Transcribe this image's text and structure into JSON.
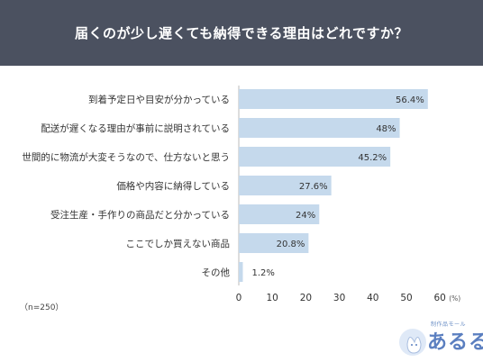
{
  "chart_data": {
    "type": "bar",
    "orientation": "horizontal",
    "title": "届くのが少し遅くても納得できる理由はどれですか？",
    "categories": [
      "到着予定日や目安が分かっている",
      "配送が遅くなる理由が事前に説明されている",
      "世間的に物流が大変そうなので、仕方ないと思う",
      "価格や内容に納得している",
      "受注生産・手作りの商品だと分かっている",
      "ここでしか買えない商品",
      "その他"
    ],
    "values": [
      56.4,
      48,
      45.2,
      27.6,
      24,
      20.8,
      1.2
    ],
    "value_labels": [
      "56.4%",
      "48%",
      "45.2%",
      "27.6%",
      "24%",
      "20.8%",
      "1.2%"
    ],
    "xlim": [
      0,
      60
    ],
    "xticks": [
      "0",
      "10",
      "20",
      "30",
      "40",
      "50",
      "60"
    ],
    "xunit": "(%)",
    "grid": false,
    "bar_color": "#c5d9ec"
  },
  "note": "（n=250）",
  "logo": {
    "sub": "制作品モール",
    "main": "あるる",
    "color": "#5b7fc0"
  }
}
